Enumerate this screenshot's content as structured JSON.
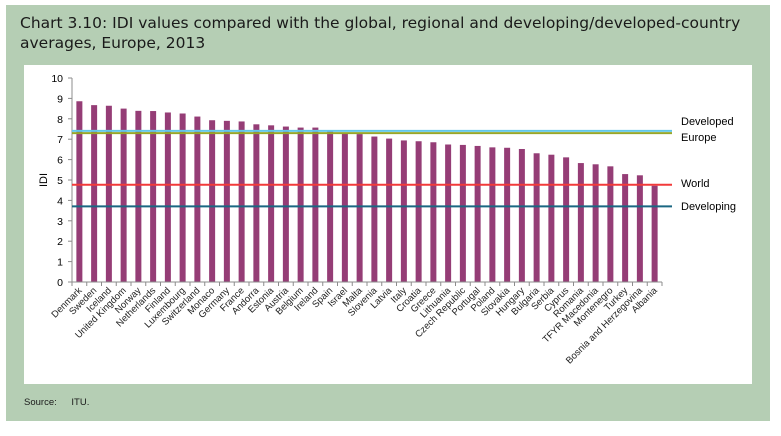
{
  "header": {
    "title": "Chart 3.10: IDI values compared with the global, regional and developing/developed-country averages, Europe, 2013"
  },
  "footer": {
    "source_label": "Source:",
    "source_value": "ITU."
  },
  "colors": {
    "panel": "#b5ceb4",
    "bar": "#953d76",
    "developed": "#63c8e8",
    "europe": "#97a62a",
    "world": "#f23a3a",
    "developing": "#1a6782"
  },
  "chart_data": {
    "type": "bar",
    "title": "Chart 3.10: IDI values compared with the global, regional and developing/developed-country averages, Europe, 2013",
    "xlabel": "",
    "ylabel": "IDI",
    "ylim": [
      0,
      10
    ],
    "yticks": [
      0,
      1,
      2,
      3,
      4,
      5,
      6,
      7,
      8,
      9,
      10
    ],
    "grid": false,
    "categories": [
      "Denmark",
      "Sweden",
      "Iceland",
      "United Kingdom",
      "Norway",
      "Netherlands",
      "Finland",
      "Luxembourg",
      "Switzerland",
      "Monaco",
      "Germany",
      "France",
      "Andorra",
      "Estonia",
      "Austria",
      "Belgium",
      "Ireland",
      "Spain",
      "Israel",
      "Malta",
      "Slovenia",
      "Latvia",
      "Italy",
      "Croatia",
      "Greece",
      "Lithuania",
      "Czech Republic",
      "Portugal",
      "Poland",
      "Slovakia",
      "Hungary",
      "Bulgaria",
      "Serbia",
      "Cyprus",
      "Romania",
      "TFYR Macedonia",
      "Montenegro",
      "Turkey",
      "Bosnia and Herzegovina",
      "Albania"
    ],
    "series": [
      {
        "name": "IDI 2013",
        "values": [
          8.86,
          8.67,
          8.64,
          8.5,
          8.39,
          8.38,
          8.31,
          8.26,
          8.11,
          7.93,
          7.9,
          7.87,
          7.73,
          7.68,
          7.62,
          7.57,
          7.57,
          7.38,
          7.29,
          7.25,
          7.13,
          7.03,
          6.94,
          6.9,
          6.85,
          6.74,
          6.72,
          6.67,
          6.6,
          6.58,
          6.52,
          6.31,
          6.24,
          6.11,
          5.83,
          5.77,
          5.67,
          5.29,
          5.23,
          4.72
        ]
      }
    ],
    "reference_lines": [
      {
        "name": "Developed",
        "value": 7.41
      },
      {
        "name": "Europe",
        "value": 7.3
      },
      {
        "name": "World",
        "value": 4.77
      },
      {
        "name": "Developing",
        "value": 3.71
      }
    ],
    "legend": "right (inline labels)"
  }
}
